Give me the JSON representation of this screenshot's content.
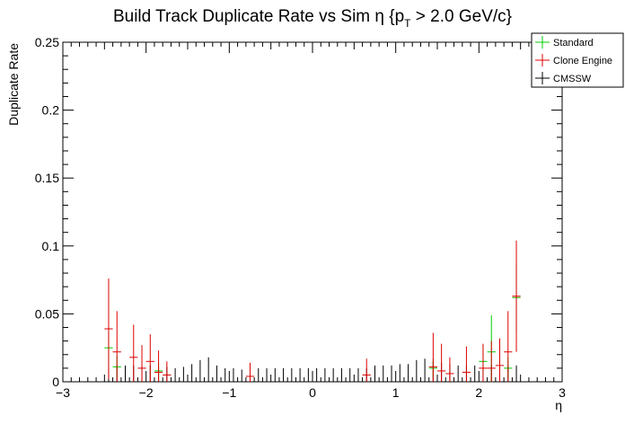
{
  "chart_data": {
    "type": "scatter",
    "title_main": "Build Track Duplicate Rate vs Sim η {p",
    "title_sub": "T",
    "title_tail": " > 2.0 GeV/c}",
    "xlabel": "η",
    "ylabel": "Duplicate Rate",
    "xlim": [
      -3,
      3
    ],
    "ylim": [
      0,
      0.25
    ],
    "x_ticks": [
      -3,
      -2,
      -1,
      0,
      1,
      2,
      3
    ],
    "x_tick_labels": [
      "−3",
      "−2",
      "−1",
      "0",
      "1",
      "2",
      "3"
    ],
    "y_ticks": [
      0,
      0.05,
      0.1,
      0.15,
      0.2,
      0.25
    ],
    "y_tick_labels": [
      "0",
      "0.05",
      "0.1",
      "0.15",
      "0.2",
      "0.25"
    ],
    "legend_position": "top-right",
    "bin_width": 0.1,
    "series": [
      {
        "name": "Standard",
        "color": "#00cc00",
        "points": [
          {
            "x": -2.45,
            "y": 0.025,
            "err": 0.012
          },
          {
            "x": -2.35,
            "y": 0.011,
            "err": 0.008
          },
          {
            "x": -1.85,
            "y": 0.008,
            "err": 0.006
          },
          {
            "x": 1.45,
            "y": 0.01,
            "err": 0.007
          },
          {
            "x": 2.05,
            "y": 0.015,
            "err": 0.012
          },
          {
            "x": 2.15,
            "y": 0.022,
            "err": 0.027
          },
          {
            "x": 2.35,
            "y": 0.01,
            "err": 0.008
          },
          {
            "x": 2.45,
            "y": 0.062,
            "err": 0.025
          }
        ]
      },
      {
        "name": "Clone Engine",
        "color": "#dd0000",
        "points": [
          {
            "x": -2.45,
            "y": 0.039,
            "err": 0.037
          },
          {
            "x": -2.35,
            "y": 0.022,
            "err": 0.03
          },
          {
            "x": -2.15,
            "y": 0.018,
            "err": 0.024
          },
          {
            "x": -2.05,
            "y": 0.01,
            "err": 0.017
          },
          {
            "x": -1.95,
            "y": 0.015,
            "err": 0.02
          },
          {
            "x": -1.85,
            "y": 0.007,
            "err": 0.016
          },
          {
            "x": -1.75,
            "y": 0.005,
            "err": 0.01
          },
          {
            "x": -0.75,
            "y": 0.004,
            "err": 0.01
          },
          {
            "x": 0.65,
            "y": 0.005,
            "err": 0.012
          },
          {
            "x": 1.45,
            "y": 0.011,
            "err": 0.025
          },
          {
            "x": 1.55,
            "y": 0.008,
            "err": 0.02
          },
          {
            "x": 1.65,
            "y": 0.006,
            "err": 0.012
          },
          {
            "x": 1.85,
            "y": 0.007,
            "err": 0.019
          },
          {
            "x": 2.05,
            "y": 0.01,
            "err": 0.018
          },
          {
            "x": 2.15,
            "y": 0.01,
            "err": 0.02
          },
          {
            "x": 2.25,
            "y": 0.012,
            "err": 0.02
          },
          {
            "x": 2.35,
            "y": 0.022,
            "err": 0.03
          },
          {
            "x": 2.45,
            "y": 0.063,
            "err": 0.041
          }
        ]
      },
      {
        "name": "CMSSW",
        "color": "#000000",
        "points": [
          {
            "x": -2.45,
            "y": 0.0,
            "err": 0.012
          },
          {
            "x": -2.35,
            "y": 0.0,
            "err": 0.012
          },
          {
            "x": -2.25,
            "y": 0.0,
            "err": 0.012
          },
          {
            "x": -2.15,
            "y": 0.0,
            "err": 0.012
          },
          {
            "x": -2.05,
            "y": 0.0,
            "err": 0.012
          },
          {
            "x": -1.95,
            "y": 0.0,
            "err": 0.012
          },
          {
            "x": -1.85,
            "y": 0.0,
            "err": 0.011
          },
          {
            "x": -1.75,
            "y": 0.0,
            "err": 0.011
          },
          {
            "x": -1.65,
            "y": 0.0,
            "err": 0.01
          },
          {
            "x": -1.55,
            "y": 0.0,
            "err": 0.011
          },
          {
            "x": -1.45,
            "y": 0.0,
            "err": 0.013
          },
          {
            "x": -1.35,
            "y": 0.0,
            "err": 0.016
          },
          {
            "x": -1.25,
            "y": 0.0,
            "err": 0.018
          },
          {
            "x": -1.15,
            "y": 0.0,
            "err": 0.012
          },
          {
            "x": -1.05,
            "y": 0.0,
            "err": 0.01
          },
          {
            "x": -0.95,
            "y": 0.0,
            "err": 0.01
          },
          {
            "x": -0.85,
            "y": 0.0,
            "err": 0.009
          },
          {
            "x": -0.75,
            "y": 0.0,
            "err": 0.01
          },
          {
            "x": -0.65,
            "y": 0.0,
            "err": 0.01
          },
          {
            "x": -0.55,
            "y": 0.0,
            "err": 0.01
          },
          {
            "x": -0.45,
            "y": 0.0,
            "err": 0.01
          },
          {
            "x": -0.35,
            "y": 0.0,
            "err": 0.01
          },
          {
            "x": -0.25,
            "y": 0.0,
            "err": 0.01
          },
          {
            "x": -0.15,
            "y": 0.0,
            "err": 0.01
          },
          {
            "x": -0.05,
            "y": 0.0,
            "err": 0.01
          },
          {
            "x": 0.05,
            "y": 0.0,
            "err": 0.01
          },
          {
            "x": 0.15,
            "y": 0.0,
            "err": 0.01
          },
          {
            "x": 0.25,
            "y": 0.0,
            "err": 0.01
          },
          {
            "x": 0.35,
            "y": 0.0,
            "err": 0.01
          },
          {
            "x": 0.45,
            "y": 0.0,
            "err": 0.01
          },
          {
            "x": 0.55,
            "y": 0.0,
            "err": 0.01
          },
          {
            "x": 0.65,
            "y": 0.0,
            "err": 0.01
          },
          {
            "x": 0.75,
            "y": 0.0,
            "err": 0.012
          },
          {
            "x": 0.85,
            "y": 0.0,
            "err": 0.012
          },
          {
            "x": 0.95,
            "y": 0.0,
            "err": 0.012
          },
          {
            "x": 1.05,
            "y": 0.0,
            "err": 0.013
          },
          {
            "x": 1.15,
            "y": 0.0,
            "err": 0.013
          },
          {
            "x": 1.25,
            "y": 0.0,
            "err": 0.016
          },
          {
            "x": 1.35,
            "y": 0.0,
            "err": 0.017
          },
          {
            "x": 1.45,
            "y": 0.0,
            "err": 0.015
          },
          {
            "x": 1.55,
            "y": 0.0,
            "err": 0.014
          },
          {
            "x": 1.65,
            "y": 0.0,
            "err": 0.013
          },
          {
            "x": 1.75,
            "y": 0.0,
            "err": 0.012
          },
          {
            "x": 1.85,
            "y": 0.0,
            "err": 0.012
          },
          {
            "x": 1.95,
            "y": 0.0,
            "err": 0.012
          },
          {
            "x": 2.05,
            "y": 0.0,
            "err": 0.012
          },
          {
            "x": 2.15,
            "y": 0.0,
            "err": 0.012
          },
          {
            "x": 2.25,
            "y": 0.0,
            "err": 0.012
          },
          {
            "x": 2.35,
            "y": 0.0,
            "err": 0.012
          },
          {
            "x": 2.45,
            "y": 0.0,
            "err": 0.012
          }
        ]
      }
    ]
  }
}
